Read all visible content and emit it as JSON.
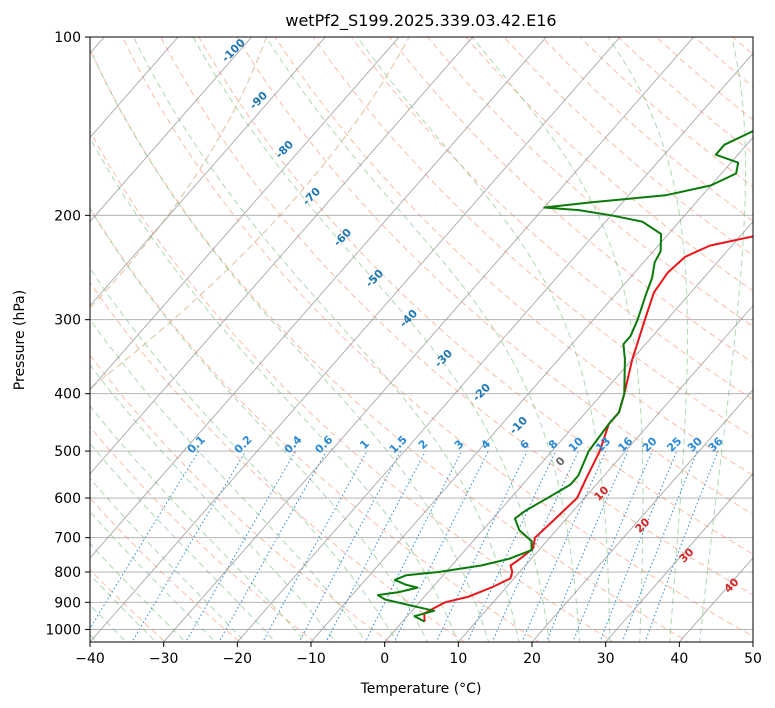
{
  "chart_data": {
    "type": "skew-t",
    "title": "wetPf2_S199.2025.339.03.42.E16",
    "xlabel": "Temperature (°C)",
    "ylabel": "Pressure (hPa)",
    "xlim": [
      -40,
      50
    ],
    "ylim": [
      1050,
      100
    ],
    "x_ticks": [
      -40,
      -30,
      -20,
      -10,
      0,
      10,
      20,
      30,
      40,
      50
    ],
    "y_ticks": [
      1000,
      900,
      800,
      700,
      600,
      500,
      400,
      300,
      200,
      100
    ],
    "mixing_ratio_labels": [
      "0.1",
      "0.2",
      "0.4",
      "0.6",
      "1",
      "1.5",
      "2",
      "3",
      "4",
      "6",
      "8",
      "10",
      "13",
      "16",
      "20",
      "25",
      "30",
      "36"
    ],
    "mixing_ratio_values": [
      0.1,
      0.2,
      0.4,
      0.6,
      1,
      1.5,
      2,
      3,
      4,
      6,
      8,
      10,
      13,
      16,
      20,
      25,
      30,
      36
    ],
    "moist_adiabat_labels": [
      "-100",
      "-90",
      "-80",
      "-70",
      "-60",
      "-50",
      "-40",
      "-30",
      "-20",
      "-10",
      "0",
      "10",
      "20",
      "30",
      "40"
    ],
    "series": [
      {
        "name": "Temperature",
        "color": "#e8161b",
        "points": [
          {
            "p": 970,
            "t": 3
          },
          {
            "p": 940,
            "t": 2
          },
          {
            "p": 925,
            "t": 2.5
          },
          {
            "p": 900,
            "t": 3.5
          },
          {
            "p": 880,
            "t": 6
          },
          {
            "p": 850,
            "t": 8
          },
          {
            "p": 820,
            "t": 9.5
          },
          {
            "p": 800,
            "t": 9
          },
          {
            "p": 780,
            "t": 8
          },
          {
            "p": 760,
            "t": 8.5
          },
          {
            "p": 730,
            "t": 9
          },
          {
            "p": 700,
            "t": 8
          },
          {
            "p": 650,
            "t": 8.5
          },
          {
            "p": 600,
            "t": 9
          },
          {
            "p": 560,
            "t": 8
          },
          {
            "p": 500,
            "t": 6.5
          },
          {
            "p": 450,
            "t": 4.5
          },
          {
            "p": 430,
            "t": 4.5
          },
          {
            "p": 400,
            "t": 3
          },
          {
            "p": 350,
            "t": 0
          },
          {
            "p": 300,
            "t": -3
          },
          {
            "p": 270,
            "t": -5
          },
          {
            "p": 250,
            "t": -5.5
          },
          {
            "p": 235,
            "t": -5
          },
          {
            "p": 225,
            "t": -3
          },
          {
            "p": 215,
            "t": 3
          },
          {
            "p": 200,
            "t": 8
          },
          {
            "p": 180,
            "t": 11
          },
          {
            "p": 165,
            "t": 13
          },
          {
            "p": 150,
            "t": 18
          },
          {
            "p": 135,
            "t": 21
          },
          {
            "p": 125,
            "t": 23
          },
          {
            "p": 110,
            "t": 27
          },
          {
            "p": 100,
            "t": 29
          }
        ]
      },
      {
        "name": "Dewpoint",
        "color": "#0a7a0a",
        "points": [
          {
            "p": 970,
            "t": 3
          },
          {
            "p": 950,
            "t": 1
          },
          {
            "p": 930,
            "t": 3
          },
          {
            "p": 910,
            "t": -1
          },
          {
            "p": 890,
            "t": -5
          },
          {
            "p": 875,
            "t": -6.5
          },
          {
            "p": 865,
            "t": -4
          },
          {
            "p": 850,
            "t": -2
          },
          {
            "p": 840,
            "t": -4
          },
          {
            "p": 825,
            "t": -6
          },
          {
            "p": 810,
            "t": -5
          },
          {
            "p": 800,
            "t": -1
          },
          {
            "p": 780,
            "t": 4
          },
          {
            "p": 760,
            "t": 7
          },
          {
            "p": 735,
            "t": 9
          },
          {
            "p": 710,
            "t": 8
          },
          {
            "p": 680,
            "t": 5
          },
          {
            "p": 650,
            "t": 3
          },
          {
            "p": 630,
            "t": 3.5
          },
          {
            "p": 600,
            "t": 5
          },
          {
            "p": 570,
            "t": 6.5
          },
          {
            "p": 550,
            "t": 6.5
          },
          {
            "p": 500,
            "t": 5
          },
          {
            "p": 450,
            "t": 4.5
          },
          {
            "p": 430,
            "t": 4.5
          },
          {
            "p": 400,
            "t": 3
          },
          {
            "p": 350,
            "t": -1
          },
          {
            "p": 330,
            "t": -3
          },
          {
            "p": 320,
            "t": -3
          },
          {
            "p": 300,
            "t": -4
          },
          {
            "p": 270,
            "t": -6
          },
          {
            "p": 255,
            "t": -7
          },
          {
            "p": 240,
            "t": -8.5
          },
          {
            "p": 230,
            "t": -9
          },
          {
            "p": 215,
            "t": -11
          },
          {
            "p": 205,
            "t": -15
          },
          {
            "p": 200,
            "t": -20
          },
          {
            "p": 196,
            "t": -25
          },
          {
            "p": 194,
            "t": -30
          },
          {
            "p": 190,
            "t": -24
          },
          {
            "p": 185,
            "t": -15
          },
          {
            "p": 178,
            "t": -10
          },
          {
            "p": 170,
            "t": -8
          },
          {
            "p": 163,
            "t": -9
          },
          {
            "p": 158,
            "t": -13
          },
          {
            "p": 152,
            "t": -13
          },
          {
            "p": 145,
            "t": -11
          },
          {
            "p": 135,
            "t": -8
          },
          {
            "p": 125,
            "t": -6
          },
          {
            "p": 115,
            "t": -3
          },
          {
            "p": 105,
            "t": 0
          },
          {
            "p": 100,
            "t": 1
          }
        ]
      }
    ]
  },
  "colors": {
    "isotherm": "#9a9a9a",
    "isobar": "#9a9a9a",
    "dry_adiabat": "#f9a58a",
    "moist_adiabat": "#8cc98c",
    "mixing_ratio": "#2a89d6",
    "theta_e": "#d9b48a",
    "label_blue": "#1f78b4",
    "label_red": "#d62728",
    "label_gray": "#666666",
    "label_mixing": "#2a89d6"
  }
}
